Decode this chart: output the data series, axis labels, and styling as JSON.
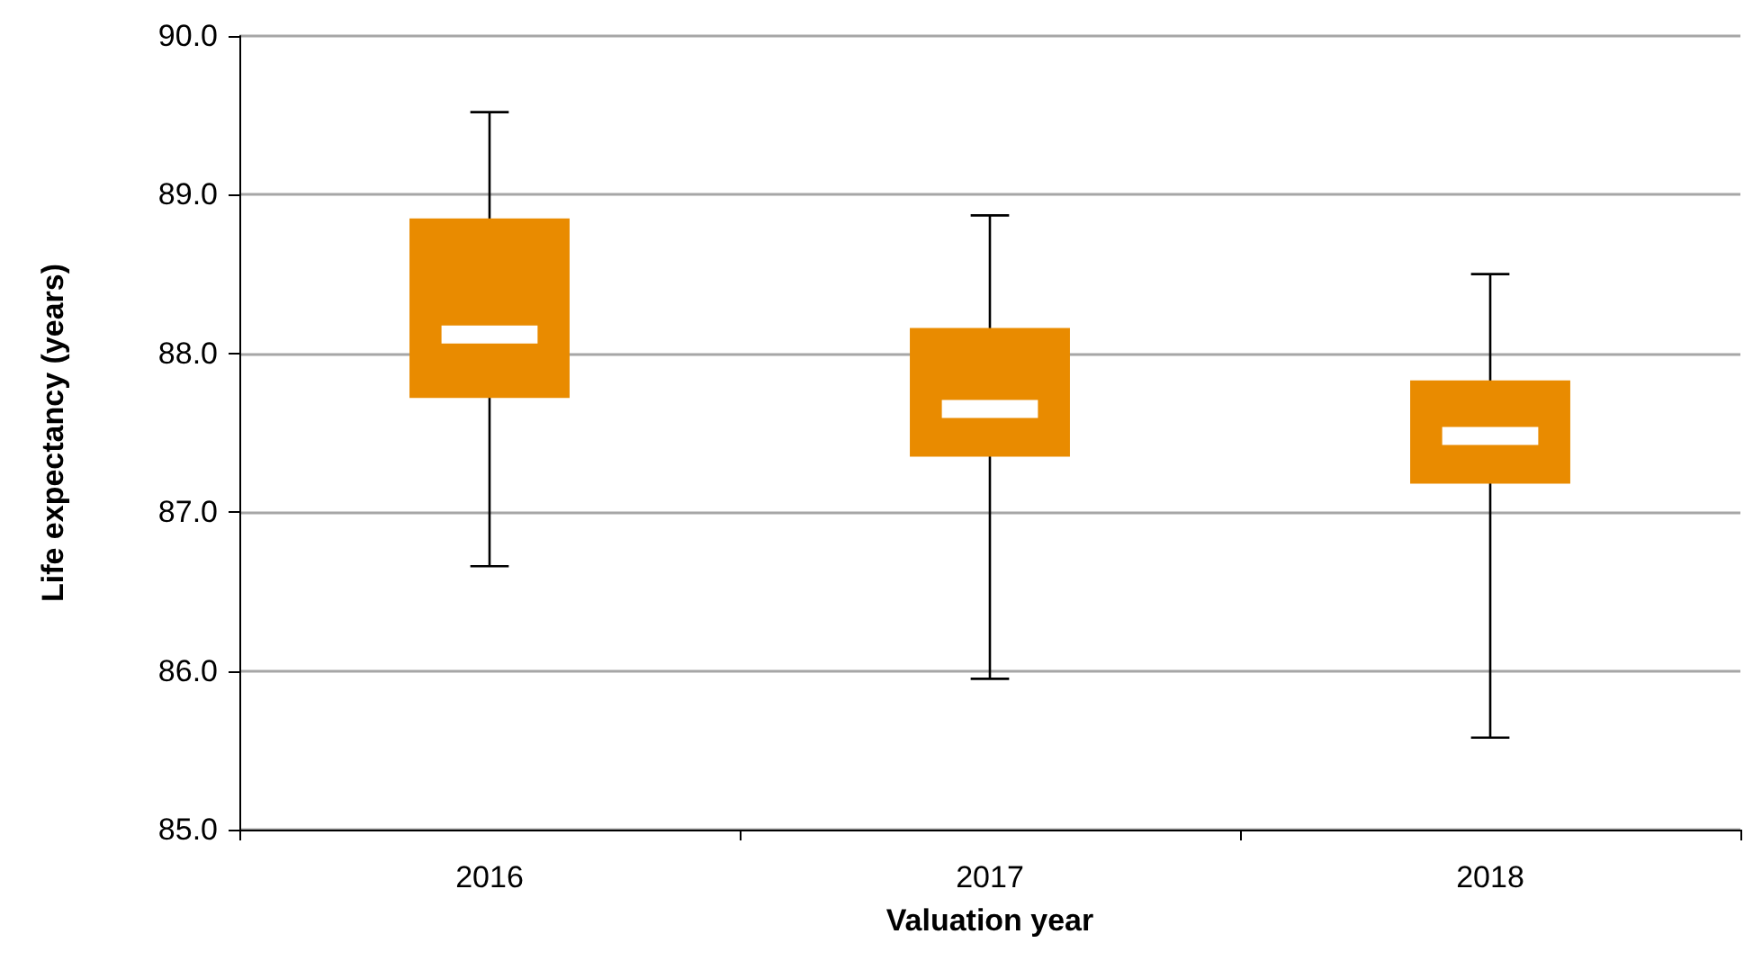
{
  "chart_data": {
    "type": "box",
    "xlabel": "Valuation year",
    "ylabel": "Life expectancy (years)",
    "categories": [
      "2016",
      "2017",
      "2018"
    ],
    "boxes": [
      {
        "low": 86.66,
        "q1": 87.72,
        "median": 88.12,
        "q3": 88.85,
        "high": 89.52
      },
      {
        "low": 85.95,
        "q1": 87.35,
        "median": 87.65,
        "q3": 88.16,
        "high": 88.87
      },
      {
        "low": 85.58,
        "q1": 87.18,
        "median": 87.48,
        "q3": 87.83,
        "high": 88.5
      }
    ],
    "color": "#e98b00",
    "ylim": [
      85,
      90
    ],
    "yticks": [
      {
        "value": 85,
        "label": "85.0"
      },
      {
        "value": 86,
        "label": "86.0"
      },
      {
        "value": 87,
        "label": "87.0"
      },
      {
        "value": 88,
        "label": "88.0"
      },
      {
        "value": 89,
        "label": "89.0"
      },
      {
        "value": 90,
        "label": "90.0"
      }
    ],
    "grid": "y"
  }
}
